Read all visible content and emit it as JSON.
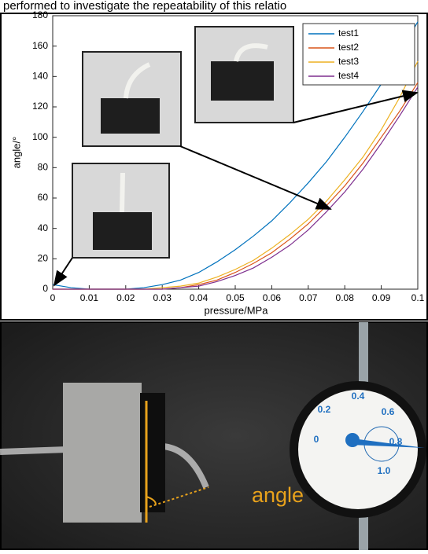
{
  "caption": "performed to investigate the repeatability of this relatio",
  "chart_data": {
    "type": "line",
    "xlabel": "pressure/MPa",
    "ylabel": "angle/°",
    "x": [
      0,
      0.005,
      0.01,
      0.015,
      0.02,
      0.025,
      0.03,
      0.035,
      0.04,
      0.045,
      0.05,
      0.055,
      0.06,
      0.065,
      0.07,
      0.075,
      0.08,
      0.085,
      0.09,
      0.095,
      0.1
    ],
    "series": [
      {
        "name": "test1",
        "color": "#0072bd",
        "values": [
          3,
          1,
          0,
          0,
          0,
          1,
          3,
          6,
          11,
          18,
          26,
          35,
          45,
          57,
          70,
          84,
          100,
          117,
          135,
          155,
          176
        ]
      },
      {
        "name": "test2",
        "color": "#d95319",
        "values": [
          0,
          0,
          0,
          0,
          0,
          0,
          0,
          1,
          3,
          6,
          11,
          17,
          24,
          33,
          43,
          55,
          68,
          83,
          100,
          117,
          136
        ]
      },
      {
        "name": "test3",
        "color": "#edb120",
        "values": [
          0,
          0,
          0,
          0,
          0,
          0,
          1,
          2,
          4,
          8,
          13,
          19,
          27,
          36,
          46,
          58,
          72,
          87,
          105,
          126,
          150
        ]
      },
      {
        "name": "test4",
        "color": "#7e2f8e",
        "values": [
          0,
          0,
          0,
          0,
          0,
          0,
          0,
          1,
          2,
          5,
          9,
          14,
          21,
          29,
          39,
          51,
          64,
          79,
          96,
          114,
          133
        ]
      }
    ],
    "xlim": [
      0,
      0.1
    ],
    "xticks": [
      0,
      0.01,
      0.02,
      0.03,
      0.04,
      0.05,
      0.06,
      0.07,
      0.08,
      0.09,
      0.1
    ],
    "ylim": [
      0,
      180
    ],
    "yticks": [
      0,
      20,
      40,
      60,
      80,
      100,
      120,
      140,
      160,
      180
    ],
    "legend": "upper-right"
  },
  "photo": {
    "angle_label": "angle",
    "gauge_labels": [
      "0",
      "0.2",
      "0.4",
      "0.6",
      "0.8",
      "1.0"
    ]
  }
}
